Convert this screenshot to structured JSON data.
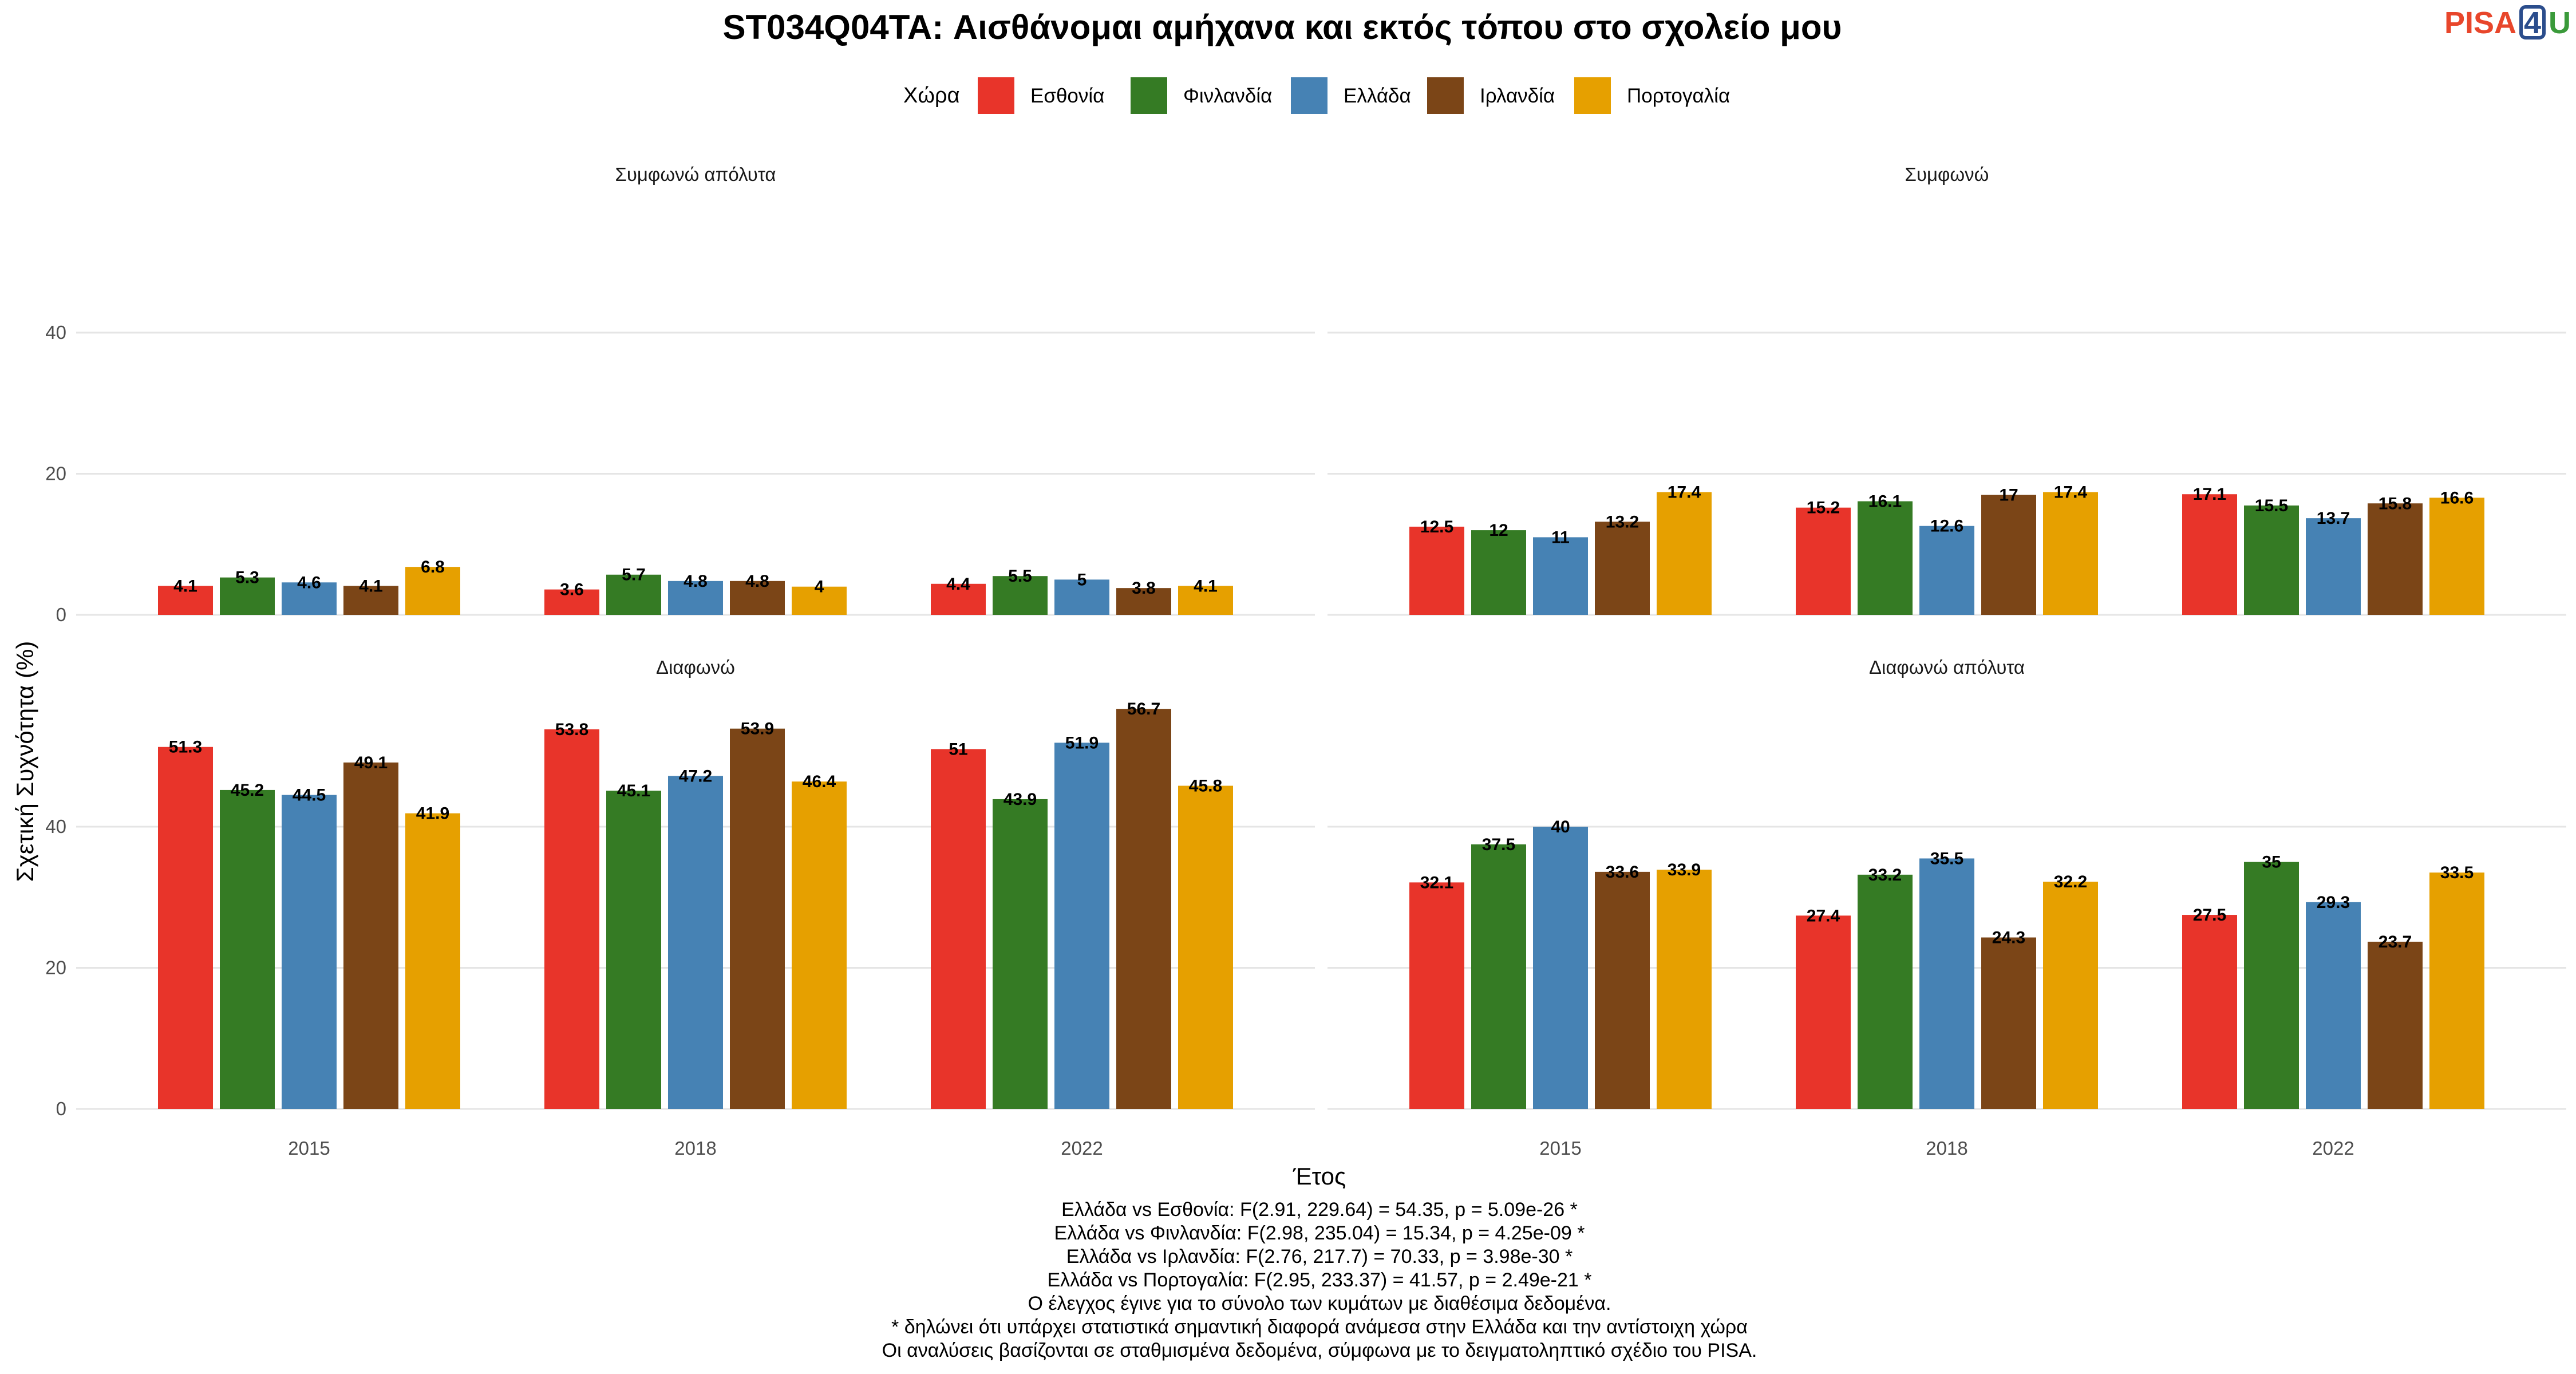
{
  "title": "ST034Q04TA: Αισθάνομαι αμήχανα και εκτός τόπου στο σχολείο μου",
  "logo": {
    "left": "PISA",
    "number": "4",
    "right": "U",
    "colors": {
      "left": "#e8462b",
      "number": "#2b4d8c",
      "right": "#3a9a3a"
    }
  },
  "legend": {
    "title": "Χώρα",
    "position": "top",
    "items": [
      {
        "name": "Εσθονία",
        "color": "#E8342A"
      },
      {
        "name": "Φινλανδία",
        "color": "#357B24"
      },
      {
        "name": "Ελλάδα",
        "color": "#4682B4"
      },
      {
        "name": "Ιρλανδία",
        "color": "#7B4517"
      },
      {
        "name": "Πορτογαλία",
        "color": "#E6A000"
      }
    ]
  },
  "chart_data": {
    "type": "bar",
    "xlabel": "Έτος",
    "ylabel": "Σχετική Συχνότητα (%)",
    "categories": [
      "2015",
      "2018",
      "2022"
    ],
    "yticks": [
      0,
      20,
      40
    ],
    "grid": true,
    "facets": [
      {
        "title": "Συμφωνώ απόλυτα",
        "ylim": [
          0,
          56.7
        ],
        "series": [
          {
            "name": "Εσθονία",
            "values": [
              4.1,
              3.6,
              4.4
            ]
          },
          {
            "name": "Φινλανδία",
            "values": [
              5.3,
              5.7,
              5.5
            ]
          },
          {
            "name": "Ελλάδα",
            "values": [
              4.6,
              4.8,
              5
            ]
          },
          {
            "name": "Ιρλανδία",
            "values": [
              4.1,
              4.8,
              3.8
            ]
          },
          {
            "name": "Πορτογαλία",
            "values": [
              6.8,
              4,
              4.1
            ]
          }
        ],
        "labels": [
          [
            "4.1",
            "3.6",
            "4.4"
          ],
          [
            "5.3",
            "5.7",
            "5.5"
          ],
          [
            "4.6",
            "4.8",
            "5"
          ],
          [
            "4.1",
            "4.8",
            "3.8"
          ],
          [
            "6.8",
            "4",
            "4.1"
          ]
        ]
      },
      {
        "title": "Συμφωνώ",
        "ylim": [
          0,
          56.7
        ],
        "series": [
          {
            "name": "Εσθονία",
            "values": [
              12.5,
              15.2,
              17.1
            ]
          },
          {
            "name": "Φινλανδία",
            "values": [
              12,
              16.1,
              15.5
            ]
          },
          {
            "name": "Ελλάδα",
            "values": [
              11,
              12.6,
              13.7
            ]
          },
          {
            "name": "Ιρλανδία",
            "values": [
              13.2,
              17,
              15.8
            ]
          },
          {
            "name": "Πορτογαλία",
            "values": [
              17.4,
              17.4,
              16.6
            ]
          }
        ],
        "labels": [
          [
            "12.5",
            "15.2",
            "17.1"
          ],
          [
            "12",
            "16.1",
            "15.5"
          ],
          [
            "11",
            "12.6",
            "13.7"
          ],
          [
            "13.2",
            "17",
            "15.8"
          ],
          [
            "17.4",
            "17.4",
            "16.6"
          ]
        ]
      },
      {
        "title": "Διαφωνώ",
        "ylim": [
          0,
          56.7
        ],
        "series": [
          {
            "name": "Εσθονία",
            "values": [
              51.3,
              53.8,
              51
            ]
          },
          {
            "name": "Φινλανδία",
            "values": [
              45.2,
              45.1,
              43.9
            ]
          },
          {
            "name": "Ελλάδα",
            "values": [
              44.5,
              47.2,
              51.9
            ]
          },
          {
            "name": "Ιρλανδία",
            "values": [
              49.1,
              53.9,
              56.7
            ]
          },
          {
            "name": "Πορτογαλία",
            "values": [
              41.9,
              46.4,
              45.8
            ]
          }
        ],
        "labels": [
          [
            "51.3",
            "53.8",
            "51"
          ],
          [
            "45.2",
            "45.1",
            "43.9"
          ],
          [
            "44.5",
            "47.2",
            "51.9"
          ],
          [
            "49.1",
            "53.9",
            "56.7"
          ],
          [
            "41.9",
            "46.4",
            "45.8"
          ]
        ]
      },
      {
        "title": "Διαφωνώ απόλυτα",
        "ylim": [
          0,
          56.7
        ],
        "series": [
          {
            "name": "Εσθονία",
            "values": [
              32.1,
              27.4,
              27.5
            ]
          },
          {
            "name": "Φινλανδία",
            "values": [
              37.5,
              33.2,
              35
            ]
          },
          {
            "name": "Ελλάδα",
            "values": [
              40,
              35.5,
              29.3
            ]
          },
          {
            "name": "Ιρλανδία",
            "values": [
              33.6,
              24.3,
              23.7
            ]
          },
          {
            "name": "Πορτογαλία",
            "values": [
              33.9,
              32.2,
              33.5
            ]
          }
        ],
        "labels": [
          [
            "32.1",
            "27.4",
            "27.5"
          ],
          [
            "37.5",
            "33.2",
            "35"
          ],
          [
            "40",
            "35.5",
            "29.3"
          ],
          [
            "33.6",
            "24.3",
            "23.7"
          ],
          [
            "33.9",
            "32.2",
            "33.5"
          ]
        ]
      }
    ]
  },
  "notes": [
    "Ελλάδα vs Εσθονία: F(2.91, 229.64) = 54.35, p = 5.09e-26 *",
    "Ελλάδα vs Φινλανδία: F(2.98, 235.04) = 15.34, p = 4.25e-09 *",
    "Ελλάδα vs Ιρλανδία: F(2.76, 217.7) = 70.33, p = 3.98e-30 *",
    "Ελλάδα vs Πορτογαλία: F(2.95, 233.37) = 41.57, p = 2.49e-21 *",
    "Ο έλεγχος έγινε για το σύνολο των κυμάτων με διαθέσιμα δεδομένα.",
    "* δηλώνει ότι υπάρχει στατιστικά σημαντική διαφορά ανάμεσα στην Ελλάδα και την αντίστοιχη χώρα",
    "Οι αναλύσεις βασίζονται σε σταθμισμένα δεδομένα, σύμφωνα με το δειγματοληπτικό σχέδιο του PISA."
  ]
}
